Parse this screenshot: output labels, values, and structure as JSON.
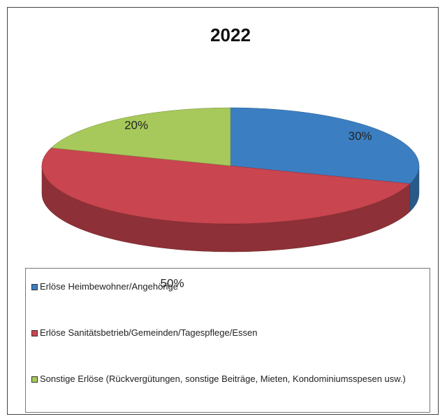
{
  "chart_data": {
    "type": "pie",
    "title": "2022",
    "categories": [
      "Erlöse Heimbewohner/Angehörige",
      "Erlöse Sanitätsbetrieb/Gemeinden/Tagespflege/Essen",
      "Sonstige Erlöse (Rückvergütungen, sonstige Beiträge, Mieten, Kondominiumsspesen usw.)"
    ],
    "values": [
      30,
      50,
      20
    ],
    "value_labels": [
      "30%",
      "50%",
      "20%"
    ],
    "colors": [
      "#3b7fc2",
      "#c9454f",
      "#a7c95b"
    ],
    "legend": "bottom"
  }
}
